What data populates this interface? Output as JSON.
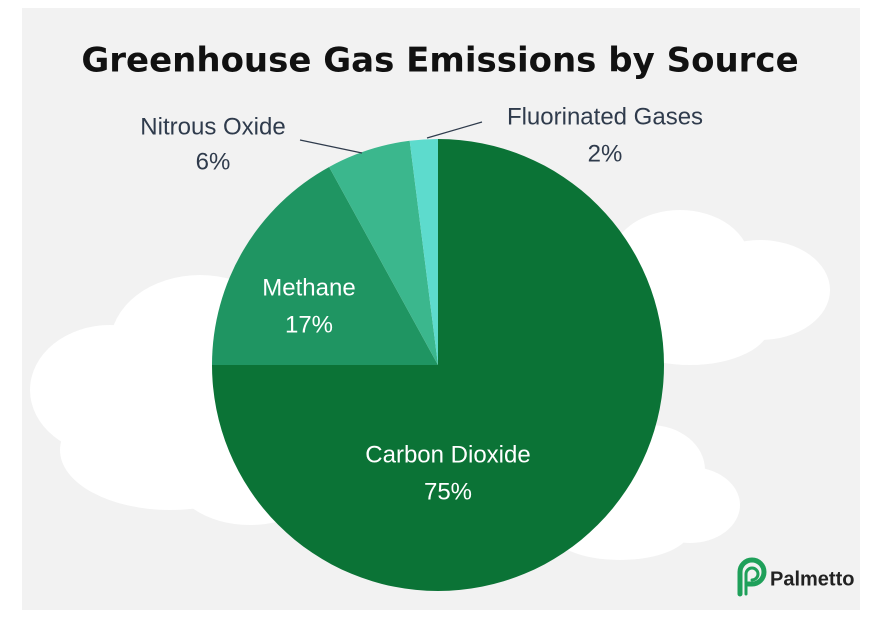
{
  "chart_data": {
    "type": "pie",
    "title": "Greenhouse Gas Emissions by Source",
    "categories": [
      "Carbon Dioxide",
      "Methane",
      "Nitrous Oxide",
      "Fluorinated Gases"
    ],
    "values": [
      75,
      17,
      6,
      2
    ],
    "value_labels": [
      "75%",
      "17%",
      "6%",
      "2%"
    ],
    "colors": [
      "#0b7336",
      "#1f9562",
      "#3bb78d",
      "#5ddbcd"
    ]
  },
  "brand": "Palmetto"
}
